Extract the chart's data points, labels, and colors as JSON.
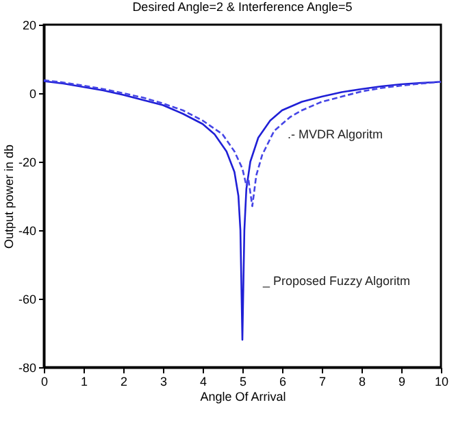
{
  "chart_data": {
    "type": "line",
    "title": "Desired Angle=2  &  Interference Angle=5",
    "xlabel": "Angle Of Arrival",
    "ylabel": "Output power in db",
    "xlim": [
      0,
      10
    ],
    "xticks": [
      0,
      1,
      2,
      3,
      4,
      5,
      6,
      7,
      8,
      9,
      10
    ],
    "ylim": [
      -80,
      20
    ],
    "yticks": [
      -80,
      -60,
      -40,
      -20,
      0,
      20
    ],
    "grid": false,
    "series": [
      {
        "color": "#1f1fd6",
        "line_style": "solid",
        "x": [
          0,
          0.5,
          1,
          1.5,
          2,
          2.5,
          3,
          3.5,
          4,
          4.3,
          4.6,
          4.8,
          4.9,
          4.95,
          5,
          5.05,
          5.1,
          5.2,
          5.4,
          5.7,
          6,
          6.5,
          7,
          7.5,
          8,
          8.5,
          9,
          9.5,
          10
        ],
        "values": [
          3.5,
          2.8,
          1.8,
          0.8,
          -0.5,
          -2,
          -3.5,
          -6,
          -9,
          -12,
          -17,
          -23,
          -30,
          -40,
          -72,
          -40,
          -28,
          -20,
          -13,
          -8,
          -5,
          -2.5,
          -1,
          0.3,
          1.2,
          2,
          2.6,
          3,
          3.3
        ]
      },
      {
        "color": "#4545e6",
        "line_style": "dashed",
        "x": [
          0,
          0.5,
          1,
          1.5,
          2,
          2.5,
          3,
          3.5,
          4,
          4.5,
          4.8,
          5,
          5.1,
          5.15,
          5.25,
          5.35,
          5.5,
          5.8,
          6.2,
          6.5,
          7,
          7.5,
          8,
          8.5,
          9,
          9.5,
          10
        ],
        "values": [
          3.8,
          3.1,
          2.2,
          1.2,
          0,
          -1.3,
          -3,
          -5,
          -8,
          -12,
          -17,
          -22,
          -27,
          -25,
          -33,
          -24,
          -18,
          -11,
          -7,
          -5,
          -2.5,
          -1,
          0.5,
          1.5,
          2.2,
          2.8,
          3.3
        ]
      }
    ],
    "annotations": [
      "_ Proposed Fuzzy Algoritm",
      ".- MVDR Algoritm"
    ]
  }
}
